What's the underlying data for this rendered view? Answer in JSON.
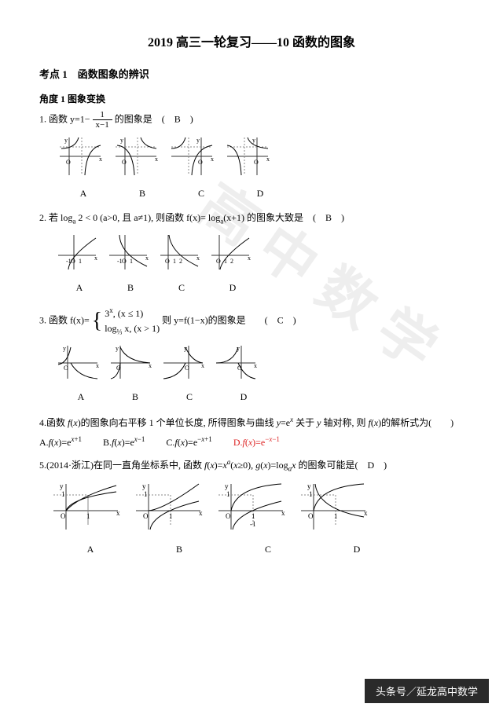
{
  "title": "2019 高三一轮复习——10 函数的图象",
  "kp1": "考点 1　函数图象的辨识",
  "sub1": "角度 1 图象变换",
  "q1": {
    "pre": "1. 函数 y=1−",
    "frac_num": "1",
    "frac_den": "x−1",
    "post": " 的图象是　(　B　)",
    "labels": [
      "A",
      "B",
      "C",
      "D"
    ],
    "label_width": 72
  },
  "q2": {
    "text": "2. 若 log<sub>a</sub> 2 < 0 (a>0, 且 a≠1), 则函数 f(x)= log<sub>a</sub>(x+1) 的图象大致是　(　B　)",
    "labels": [
      "A",
      "B",
      "C",
      "D"
    ],
    "label_width": 62
  },
  "q3": {
    "pre": "3. 函数 f(x)=",
    "line1": "3<sup>x</sup>, (x ≤ 1)",
    "line2": "log<sub>⅓</sub> x, (x > 1)",
    "post": " 则 y=f(1−x)的图象是　　(　C　)",
    "labels": [
      "A",
      "B",
      "C",
      "D"
    ],
    "label_width": 66
  },
  "q4": {
    "text": "4.函数 <i>f</i>(<i>x</i>)的图象向右平移 1 个单位长度, 所得图象与曲线 <i>y</i>=e<sup><i>x</i></sup> 关于 <i>y</i> 轴对称, 则 <i>f</i>(<i>x</i>)的解析式为(　　)",
    "A": "A.<i>f</i>(<i>x</i>)=e<sup><i>x</i>+1</sup>",
    "B": "B.<i>f</i>(<i>x</i>)=e<sup><i>x</i>−1</sup>",
    "C": "C.<i>f</i>(<i>x</i>)=e<sup>−<i>x</i>+1</sup>",
    "D": "D.<i>f</i>(<i>x</i>)=e<sup>−<i>x</i>−1</sup>"
  },
  "q5": {
    "text": "5.(2014·浙江)在同一直角坐标系中, 函数 <i>f</i>(<i>x</i>)=<i>x</i><sup><i>a</i></sup>(<i>x</i>≥0), <i>g</i>(<i>x</i>)=log<sub><i>a</i></sub><i>x</i> 的图象可能是(　D　)",
    "labels": [
      "A",
      "B",
      "C",
      "D"
    ],
    "label_width": 110
  },
  "watermark": "高中数学",
  "footer": "头条号／延龙高中数学",
  "axis_color": "#333",
  "dash_color": "#888"
}
